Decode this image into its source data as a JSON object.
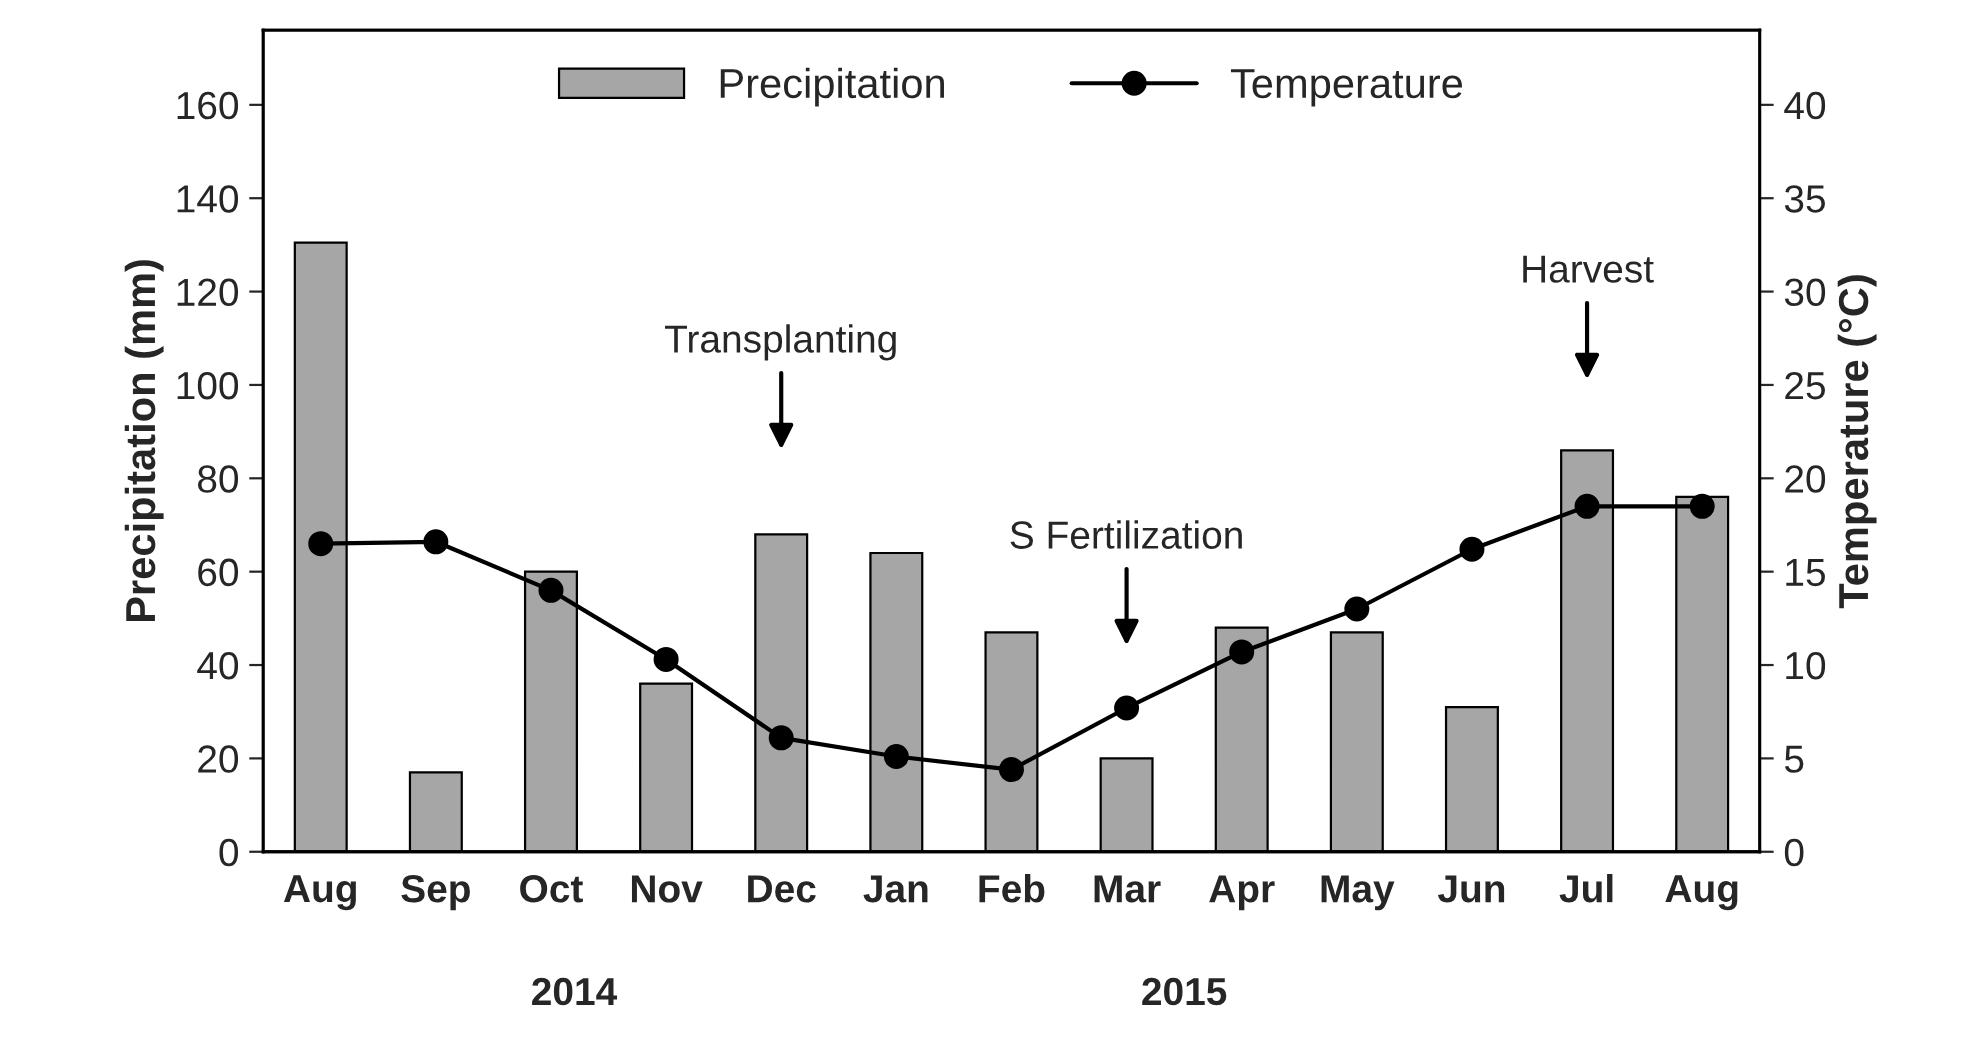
{
  "chart_data": {
    "type": "bar",
    "categories": [
      "Aug",
      "Sep",
      "Oct",
      "Nov",
      "Dec",
      "Jan",
      "Feb",
      "Mar",
      "Apr",
      "May",
      "Jun",
      "Jul",
      "Aug"
    ],
    "series": [
      {
        "name": "Precipitation",
        "color": "#a6a6a6",
        "values": [
          130.5,
          17,
          60,
          36,
          68,
          64,
          47,
          20,
          48,
          47,
          31,
          86,
          76
        ]
      },
      {
        "name": "Temperature",
        "type": "line",
        "axis": "y2",
        "color": "#000000",
        "marker": "circle",
        "values": [
          16.5,
          16.6,
          14,
          10.3,
          6.1,
          5.1,
          4.4,
          7.7,
          10.7,
          13,
          16.2,
          18.5,
          18.5
        ]
      }
    ],
    "ylabel": "Precipitation (mm)",
    "y2label": "Temperature (°C)",
    "ylim": [
      0,
      176
    ],
    "yticks": [
      0,
      20,
      40,
      60,
      80,
      100,
      120,
      140,
      160
    ],
    "y2lim": [
      0,
      44
    ],
    "y2ticks": [
      0,
      5,
      10,
      15,
      20,
      25,
      30,
      35,
      40
    ],
    "annotations": [
      "Transplanting",
      "S Fertilization",
      "Harvest",
      "2014",
      "2015"
    ],
    "legend": "top",
    "grid": false
  }
}
